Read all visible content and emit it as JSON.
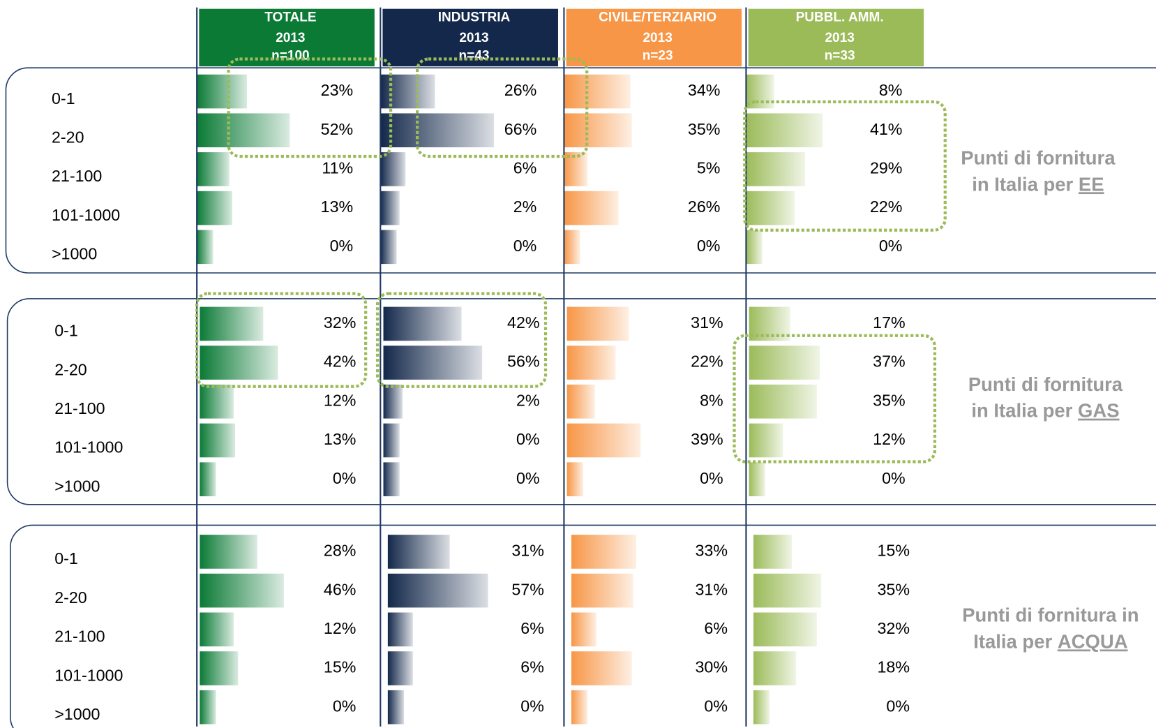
{
  "chart_data": {
    "type": "bar",
    "columns": [
      {
        "name": "TOTALE",
        "year": "2013",
        "n": "n=100",
        "color": "#0a7a35"
      },
      {
        "name": "INDUSTRIA",
        "year": "2013",
        "n": "n=43",
        "color": "#13284a"
      },
      {
        "name": "CIVILE/TERZIARIO",
        "year": "2013",
        "n": "n=23",
        "color": "#f79646"
      },
      {
        "name": "PUBBL. AMM.",
        "year": "2013",
        "n": "n=33",
        "color": "#9bbb59"
      }
    ],
    "sections": [
      {
        "label_lines": [
          "Punti di fornitura",
          "in Italia per"
        ],
        "emphasis": "EE",
        "categories": [
          "0-1",
          "2-20",
          "21-100",
          "101-1000",
          ">1000"
        ],
        "series": [
          {
            "values": [
              23,
              52,
              11,
              13,
              0
            ],
            "value_labels": [
              "23%",
              "52%",
              "11%",
              "13%",
              "0%"
            ]
          },
          {
            "values": [
              26,
              66,
              6,
              2,
              0
            ],
            "value_labels": [
              "26%",
              "66%",
              "6%",
              "2%",
              "0%"
            ]
          },
          {
            "values": [
              34,
              35,
              5,
              26,
              0
            ],
            "value_labels": [
              "34%",
              "35%",
              "5%",
              "26%",
              "0%"
            ]
          },
          {
            "values": [
              8,
              41,
              29,
              22,
              0
            ],
            "value_labels": [
              "8%",
              "41%",
              "29%",
              "22%",
              "0%"
            ]
          }
        ]
      },
      {
        "label_lines": [
          "Punti di fornitura",
          "in Italia per"
        ],
        "emphasis": "GAS",
        "categories": [
          "0-1",
          "2-20",
          "21-100",
          "101-1000",
          ">1000"
        ],
        "series": [
          {
            "values": [
              32,
              42,
              12,
              13,
              0
            ],
            "value_labels": [
              "32%",
              "42%",
              "12%",
              "13%",
              "0%"
            ]
          },
          {
            "values": [
              42,
              56,
              2,
              0,
              0
            ],
            "value_labels": [
              "42%",
              "56%",
              "2%",
              "0%",
              "0%"
            ]
          },
          {
            "values": [
              31,
              22,
              8,
              39,
              0
            ],
            "value_labels": [
              "31%",
              "22%",
              "8%",
              "39%",
              "0%"
            ]
          },
          {
            "values": [
              17,
              37,
              35,
              12,
              0
            ],
            "value_labels": [
              "17%",
              "37%",
              "35%",
              "12%",
              "0%"
            ]
          }
        ]
      },
      {
        "label_lines": [
          "Punti di fornitura in",
          "Italia per"
        ],
        "emphasis": "ACQUA",
        "categories": [
          "0-1",
          "2-20",
          "21-100",
          "101-1000",
          ">1000"
        ],
        "series": [
          {
            "values": [
              28,
              46,
              12,
              15,
              0
            ],
            "value_labels": [
              "28%",
              "46%",
              "12%",
              "15%",
              "0%"
            ]
          },
          {
            "values": [
              31,
              57,
              6,
              6,
              0
            ],
            "value_labels": [
              "31%",
              "57%",
              "6%",
              "6%",
              "0%"
            ]
          },
          {
            "values": [
              33,
              31,
              6,
              30,
              0
            ],
            "value_labels": [
              "33%",
              "31%",
              "6%",
              "30%",
              "0%"
            ]
          },
          {
            "values": [
              15,
              35,
              32,
              18,
              0
            ],
            "value_labels": [
              "15%",
              "35%",
              "32%",
              "18%",
              "0%"
            ]
          }
        ]
      }
    ]
  }
}
